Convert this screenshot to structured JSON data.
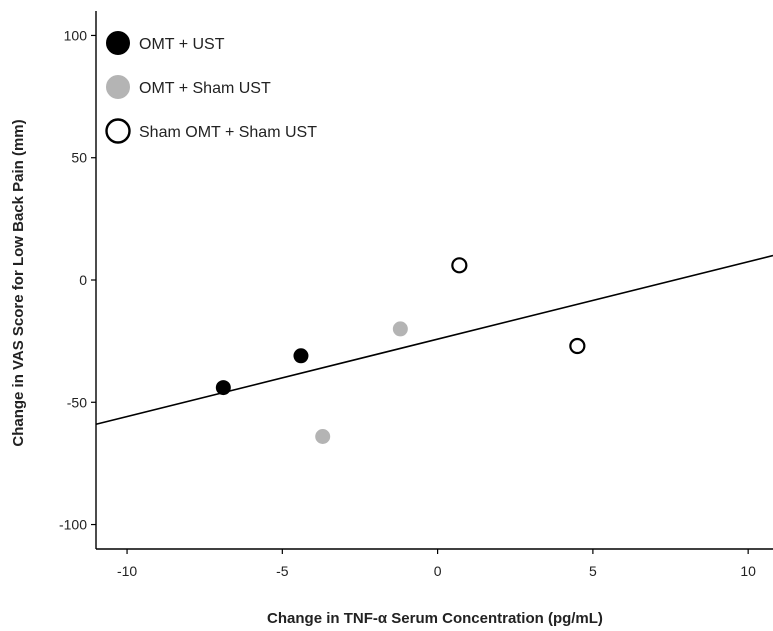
{
  "chart_data": {
    "type": "scatter",
    "xlabel": "Change in TNF-α Serum Concentration (pg/mL)",
    "ylabel": "Change in VAS Score for Low Back Pain (mm)",
    "xlim": [
      -11.0,
      10.8
    ],
    "ylim": [
      -110,
      110
    ],
    "xticks": [
      -10,
      -5,
      0,
      5,
      10
    ],
    "yticks": [
      -100,
      -50,
      0,
      50,
      100
    ],
    "grid": false,
    "legend_position": "top-left",
    "series": [
      {
        "name": "OMT + UST",
        "marker": "filled-circle",
        "fill": "#000000",
        "stroke": "#000000",
        "points": [
          {
            "x": -6.9,
            "y": -44
          },
          {
            "x": -4.4,
            "y": -31
          }
        ]
      },
      {
        "name": "OMT + Sham UST",
        "marker": "filled-circle",
        "fill": "#b4b4b4",
        "stroke": "#b4b4b4",
        "points": [
          {
            "x": -3.7,
            "y": -64
          },
          {
            "x": -1.2,
            "y": -20
          }
        ]
      },
      {
        "name": "Sham OMT + Sham UST",
        "marker": "open-circle",
        "fill": "#ffffff",
        "stroke": "#000000",
        "points": [
          {
            "x": 0.7,
            "y": 6
          },
          {
            "x": 4.5,
            "y": -27
          }
        ]
      }
    ],
    "fit_line": {
      "x": [
        -11.0,
        10.8
      ],
      "y": [
        -59,
        10
      ]
    }
  }
}
